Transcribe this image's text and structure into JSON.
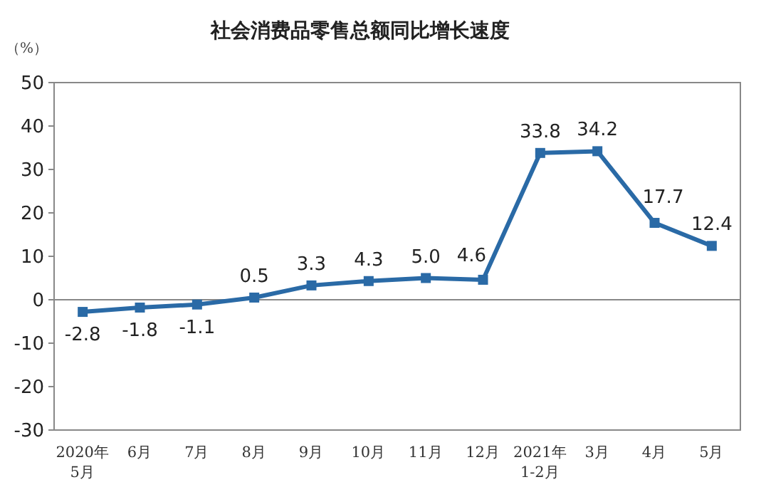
{
  "chart_data": {
    "type": "line",
    "title": "社会消费品零售总额同比增长速度",
    "ylabel": "（%）",
    "categories": [
      "2020年\n5月",
      "6月",
      "7月",
      "8月",
      "9月",
      "10月",
      "11月",
      "12月",
      "2021年\n1-2月",
      "3月",
      "4月",
      "5月"
    ],
    "values": [
      -2.8,
      -1.8,
      -1.1,
      0.5,
      3.3,
      4.3,
      5.0,
      4.6,
      33.8,
      34.2,
      17.7,
      12.4
    ],
    "value_labels": [
      "-2.8",
      "-1.8",
      "-1.1",
      "0.5",
      "3.3",
      "4.3",
      "5.0",
      "4.6",
      "33.8",
      "34.2",
      "17.7",
      "12.4"
    ],
    "color": "#2a6aa6",
    "ylim": [
      -30,
      50
    ],
    "yticks": [
      -30,
      -20,
      -10,
      0,
      10,
      20,
      30,
      40,
      50
    ],
    "marker": "square"
  }
}
